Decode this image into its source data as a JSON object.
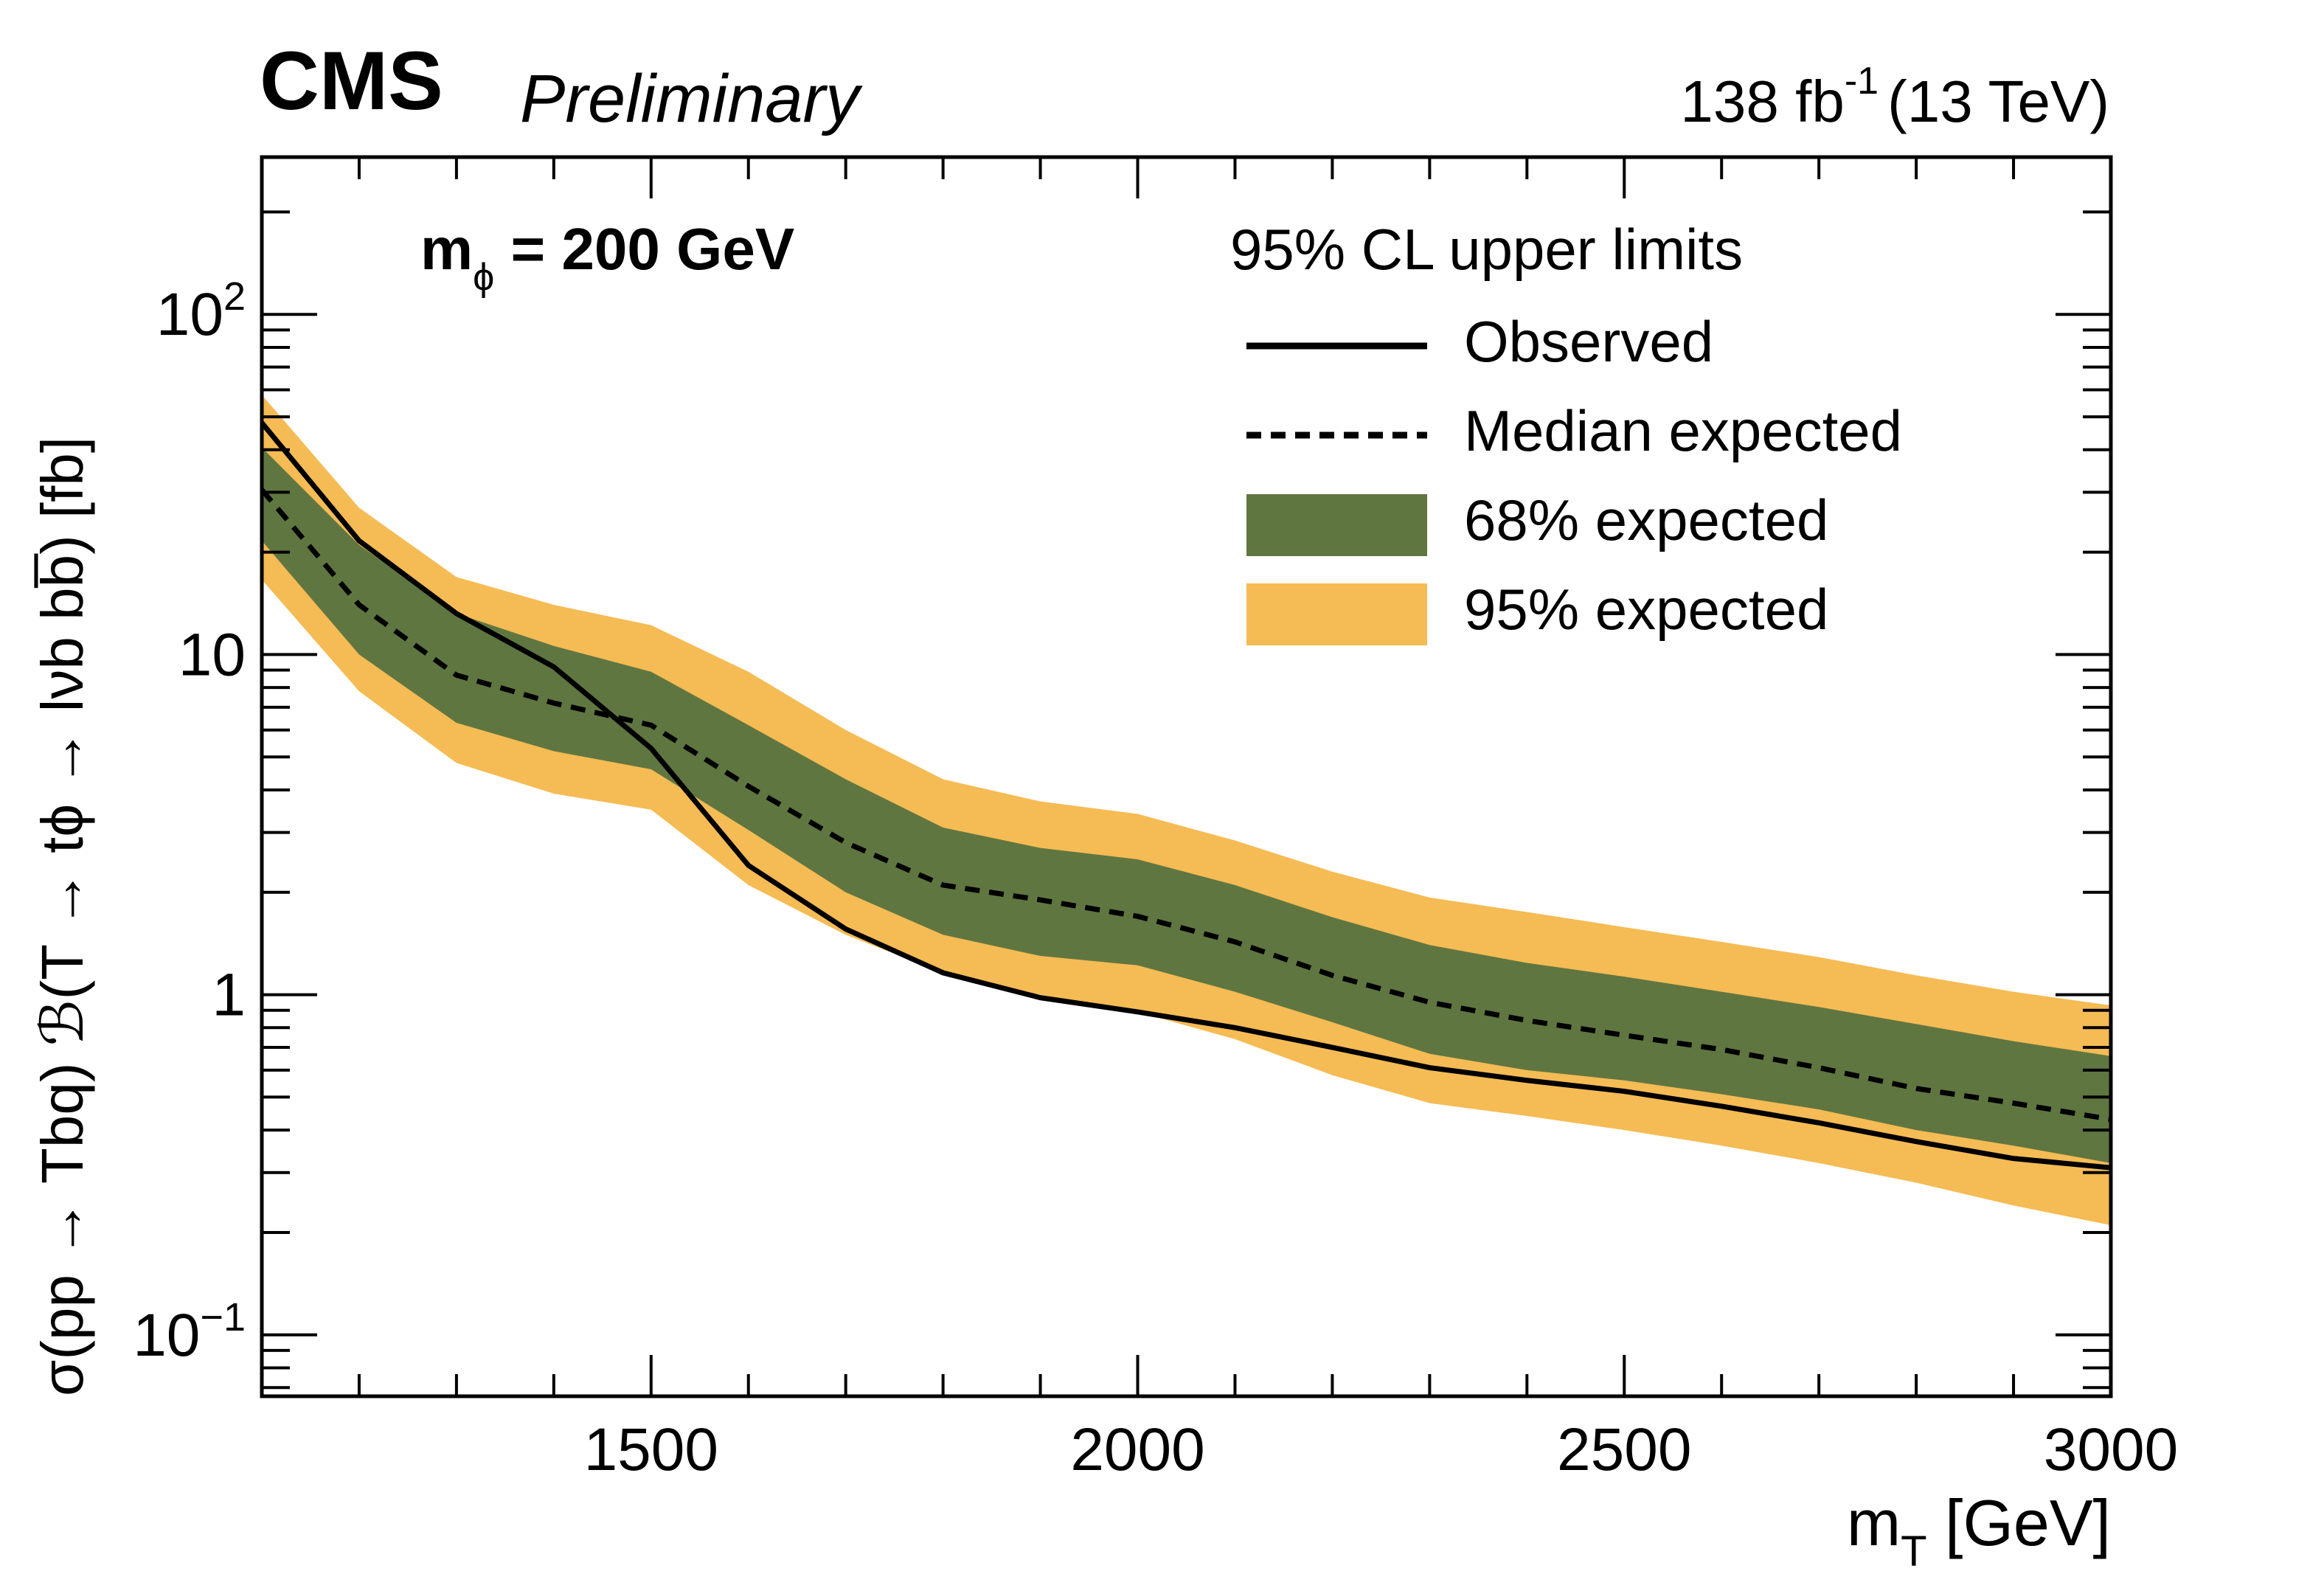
{
  "chart_data": {
    "type": "line",
    "experiment": "CMS",
    "status": "Preliminary",
    "lumi_label": "138 fb",
    "lumi_exponent": "-1",
    "energy_label": "(13 TeV)",
    "annotation_main": "m",
    "annotation_sub": "ϕ",
    "annotation_rest": " = 200 GeV",
    "xlabel_main": "m",
    "xlabel_sub": "T",
    "xlabel_rest": " [GeV]",
    "ylabel": "σ(pp → Tbq) ℬ(T → tϕ → lνb  bb̅) [fb]",
    "xlim": [
      1100,
      3000
    ],
    "ylim": [
      0.066,
      290
    ],
    "yscale": "log",
    "x_ticks": [
      {
        "value": 1500,
        "label": "1500"
      },
      {
        "value": 2000,
        "label": "2000"
      },
      {
        "value": 2500,
        "label": "2500"
      },
      {
        "value": 3000,
        "label": "3000"
      }
    ],
    "y_ticks": [
      {
        "value": 100,
        "label": "10",
        "exp": "2"
      },
      {
        "value": 10,
        "label": "10",
        "exp": ""
      },
      {
        "value": 1,
        "label": "1",
        "exp": ""
      },
      {
        "value": 0.1,
        "label": "10",
        "exp": "−1"
      }
    ],
    "legend": {
      "title": "95% CL upper limits",
      "placement": "top-right",
      "entries": [
        {
          "key": "observed",
          "label": "Observed",
          "style": "solid"
        },
        {
          "key": "median",
          "label": "Median expected",
          "style": "dashed"
        },
        {
          "key": "band68",
          "label": "68% expected",
          "style": "fill"
        },
        {
          "key": "band95",
          "label": "95% expected",
          "style": "fill"
        }
      ]
    },
    "colors": {
      "band68": "#607641",
      "band95": "#f5bb54",
      "line": "#000000"
    },
    "x": [
      1100,
      1200,
      1300,
      1400,
      1500,
      1600,
      1700,
      1800,
      1900,
      2000,
      2100,
      2200,
      2300,
      2400,
      2500,
      2600,
      2700,
      2800,
      2900,
      3000
    ],
    "series": [
      {
        "name": "Observed",
        "values": [
          48,
          21.6,
          13.2,
          9.2,
          5.3,
          2.4,
          1.56,
          1.16,
          0.98,
          0.89,
          0.8,
          0.7,
          0.61,
          0.56,
          0.52,
          0.47,
          0.42,
          0.37,
          0.33,
          0.31
        ]
      },
      {
        "name": "Median expected",
        "values": [
          30.5,
          14,
          8.7,
          7.2,
          6.2,
          4.1,
          2.8,
          2.1,
          1.9,
          1.7,
          1.43,
          1.14,
          0.95,
          0.84,
          0.76,
          0.69,
          0.61,
          0.53,
          0.48,
          0.43
        ]
      },
      {
        "name": "68% expected upper",
        "values": [
          40.6,
          21,
          13.2,
          10.6,
          8.9,
          6.2,
          4.3,
          3.1,
          2.7,
          2.5,
          2.1,
          1.69,
          1.4,
          1.24,
          1.13,
          1.02,
          0.92,
          0.82,
          0.73,
          0.66
        ]
      },
      {
        "name": "68% expected lower",
        "values": [
          21.6,
          10,
          6.3,
          5.2,
          4.6,
          3.05,
          2.0,
          1.5,
          1.3,
          1.22,
          1.02,
          0.83,
          0.67,
          0.6,
          0.56,
          0.51,
          0.46,
          0.4,
          0.36,
          0.32
        ]
      },
      {
        "name": "95% expected upper",
        "values": [
          58,
          27,
          16.9,
          14,
          12.2,
          8.9,
          6.0,
          4.3,
          3.7,
          3.4,
          2.84,
          2.3,
          1.93,
          1.75,
          1.58,
          1.43,
          1.29,
          1.14,
          1.02,
          0.93
        ]
      },
      {
        "name": "95% expected lower",
        "values": [
          16.6,
          7.8,
          4.8,
          3.9,
          3.5,
          2.1,
          1.5,
          1.16,
          1.0,
          0.89,
          0.74,
          0.58,
          0.48,
          0.44,
          0.4,
          0.36,
          0.32,
          0.28,
          0.24,
          0.21
        ]
      }
    ]
  }
}
